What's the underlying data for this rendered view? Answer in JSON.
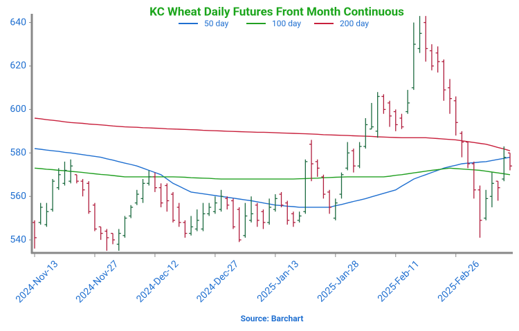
{
  "chart_data": {
    "type": "ohlc",
    "title": "KC Wheat Daily Futures Front Month Continuous",
    "source": "Source: Barchart",
    "categories": [
      "2024-Nov-13",
      null,
      null,
      null,
      null,
      null,
      null,
      null,
      null,
      null,
      "2024-Nov-27",
      null,
      null,
      null,
      null,
      null,
      null,
      null,
      null,
      null,
      "2024-Dec-12",
      null,
      null,
      null,
      null,
      null,
      null,
      null,
      null,
      null,
      "2024-Dec-27",
      null,
      null,
      null,
      null,
      null,
      null,
      null,
      null,
      null,
      "2025-Jan-13",
      null,
      null,
      null,
      null,
      null,
      null,
      null,
      null,
      null,
      "2025-Jan-28",
      null,
      null,
      null,
      null,
      null,
      null,
      null,
      null,
      null,
      "2025-Feb-11",
      null,
      null,
      null,
      null,
      null,
      null,
      null,
      null,
      null,
      "2025-Feb-26",
      null,
      null,
      null,
      null,
      null,
      null,
      null,
      null,
      null
    ],
    "open": [
      548,
      548,
      547,
      554,
      564,
      566,
      567,
      570,
      567,
      566,
      556,
      546,
      544,
      543,
      538,
      542,
      551,
      557,
      559,
      566,
      569,
      564,
      565,
      561,
      555,
      548,
      543,
      545,
      545,
      552,
      553,
      554,
      559,
      558,
      554,
      542,
      549,
      556,
      553,
      548,
      554,
      561,
      557,
      552,
      549,
      553,
      584,
      576,
      569,
      562,
      550,
      561,
      573,
      581,
      574,
      583,
      591,
      590,
      606,
      603,
      599,
      596,
      599,
      610,
      628,
      640,
      627,
      626,
      622,
      610,
      604,
      589,
      585,
      575,
      563,
      550,
      560,
      567,
      568,
      580
    ],
    "high": [
      549,
      557,
      557,
      568,
      573,
      576,
      577,
      570,
      568,
      567,
      557,
      546,
      545,
      543,
      545,
      551,
      556,
      563,
      568,
      572,
      571,
      566,
      566,
      562,
      557,
      549,
      551,
      554,
      557,
      557,
      560,
      563,
      560,
      559,
      555,
      557,
      560,
      557,
      554,
      559,
      561,
      562,
      558,
      553,
      553,
      577,
      586,
      577,
      570,
      563,
      559,
      571,
      585,
      582,
      585,
      596,
      603,
      608,
      607,
      604,
      600,
      598,
      609,
      640,
      643,
      643,
      630,
      629,
      623,
      614,
      606,
      590,
      585,
      576,
      565,
      563,
      571,
      567,
      583,
      580
    ],
    "low": [
      536,
      547,
      546,
      553,
      563,
      565,
      566,
      566,
      560,
      552,
      544,
      540,
      535,
      538,
      535,
      541,
      550,
      556,
      557,
      565,
      562,
      555,
      553,
      548,
      546,
      541,
      542,
      544,
      544,
      551,
      552,
      553,
      554,
      545,
      539,
      541,
      548,
      546,
      545,
      547,
      553,
      555,
      547,
      546,
      548,
      552,
      567,
      569,
      559,
      552,
      549,
      559,
      572,
      571,
      573,
      582,
      591,
      587,
      598,
      592,
      590,
      591,
      598,
      609,
      626,
      622,
      618,
      617,
      604,
      598,
      588,
      578,
      573,
      559,
      541,
      549,
      555,
      558,
      567,
      572
    ],
    "close": [
      541,
      555,
      553,
      567,
      570,
      572,
      574,
      567,
      563,
      553,
      545,
      543,
      541,
      540,
      543,
      550,
      555,
      561,
      566,
      569,
      564,
      557,
      558,
      549,
      548,
      543,
      546,
      549,
      552,
      555,
      557,
      560,
      556,
      546,
      540,
      551,
      552,
      549,
      548,
      555,
      559,
      556,
      549,
      548,
      551,
      576,
      575,
      573,
      561,
      555,
      557,
      570,
      580,
      574,
      583,
      593,
      592,
      606,
      600,
      597,
      593,
      592,
      603,
      630,
      635,
      628,
      620,
      622,
      609,
      605,
      594,
      585,
      575,
      563,
      549,
      559,
      566,
      564,
      578,
      574
    ],
    "up_color": "#1c6b40",
    "down_color": "#b01c3c",
    "series": [
      {
        "name": "50 day",
        "color": "#1f6fd0",
        "values": [
          582,
          581.7,
          581.3,
          581,
          580.7,
          580.3,
          580,
          579.6,
          579.2,
          578.8,
          578.4,
          578,
          577.3,
          576.7,
          576,
          575.3,
          574.7,
          574,
          573,
          572,
          571,
          570,
          568,
          566,
          564.7,
          563.3,
          562,
          561.6,
          561.2,
          560.8,
          560.4,
          560,
          559.6,
          559.2,
          558.8,
          558.4,
          558,
          557.5,
          557,
          556.5,
          556,
          555.8,
          555.5,
          555.3,
          555,
          555,
          555,
          555,
          555,
          555,
          555.7,
          556.3,
          557,
          557.7,
          558.3,
          559,
          559.8,
          560.6,
          561.4,
          562.2,
          563,
          564.7,
          566.3,
          568,
          569,
          570,
          571,
          572,
          573,
          573.7,
          574.3,
          575,
          575.3,
          575.5,
          575.8,
          576,
          576.5,
          577,
          577.5,
          578
        ]
      },
      {
        "name": "100 day",
        "color": "#22a022",
        "values": [
          573,
          572.8,
          572.5,
          572.3,
          572,
          571.8,
          571.5,
          571.3,
          571,
          570.7,
          570.4,
          570.1,
          569.9,
          569.6,
          569.3,
          569,
          569,
          569,
          569,
          569,
          569,
          569,
          569,
          569,
          568.9,
          568.8,
          568.6,
          568.5,
          568.4,
          568.3,
          568.1,
          568,
          568,
          568,
          568,
          568,
          568,
          568,
          568,
          568,
          568,
          568,
          568,
          568,
          568.1,
          568.2,
          568.3,
          568.4,
          568.6,
          568.7,
          568.8,
          568.9,
          569,
          569,
          569,
          569,
          569,
          569,
          569,
          569.3,
          569.7,
          570,
          570.4,
          570.8,
          571.2,
          571.6,
          572,
          572.3,
          572.7,
          573,
          572.8,
          572.6,
          572.4,
          572.2,
          572,
          571.6,
          571.2,
          570.8,
          570.4,
          570
        ]
      },
      {
        "name": "200 day",
        "color": "#c8203c",
        "values": [
          596,
          595.7,
          595.3,
          595,
          594.7,
          594.3,
          594,
          593.8,
          593.6,
          593.3,
          593.1,
          592.9,
          592.7,
          592.4,
          592.2,
          592,
          591.9,
          591.8,
          591.6,
          591.5,
          591.4,
          591.3,
          591.1,
          591,
          590.9,
          590.8,
          590.7,
          590.6,
          590.4,
          590.3,
          590.2,
          590.1,
          590,
          589.9,
          589.8,
          589.7,
          589.6,
          589.5,
          589.5,
          589.4,
          589.3,
          589.2,
          589.1,
          589,
          588.9,
          588.8,
          588.7,
          588.6,
          588.4,
          588.3,
          588.2,
          588.1,
          588,
          587.9,
          587.8,
          587.7,
          587.6,
          587.4,
          587.3,
          587.2,
          587.1,
          587,
          587,
          587,
          587,
          587,
          586.8,
          586.6,
          586.4,
          586.2,
          586,
          585.6,
          585.2,
          584.8,
          584.4,
          584,
          583.3,
          582.5,
          581.8,
          581
        ]
      }
    ],
    "ylim": [
      534,
      644
    ],
    "yticks": [
      540,
      560,
      580,
      600,
      620,
      640
    ]
  }
}
